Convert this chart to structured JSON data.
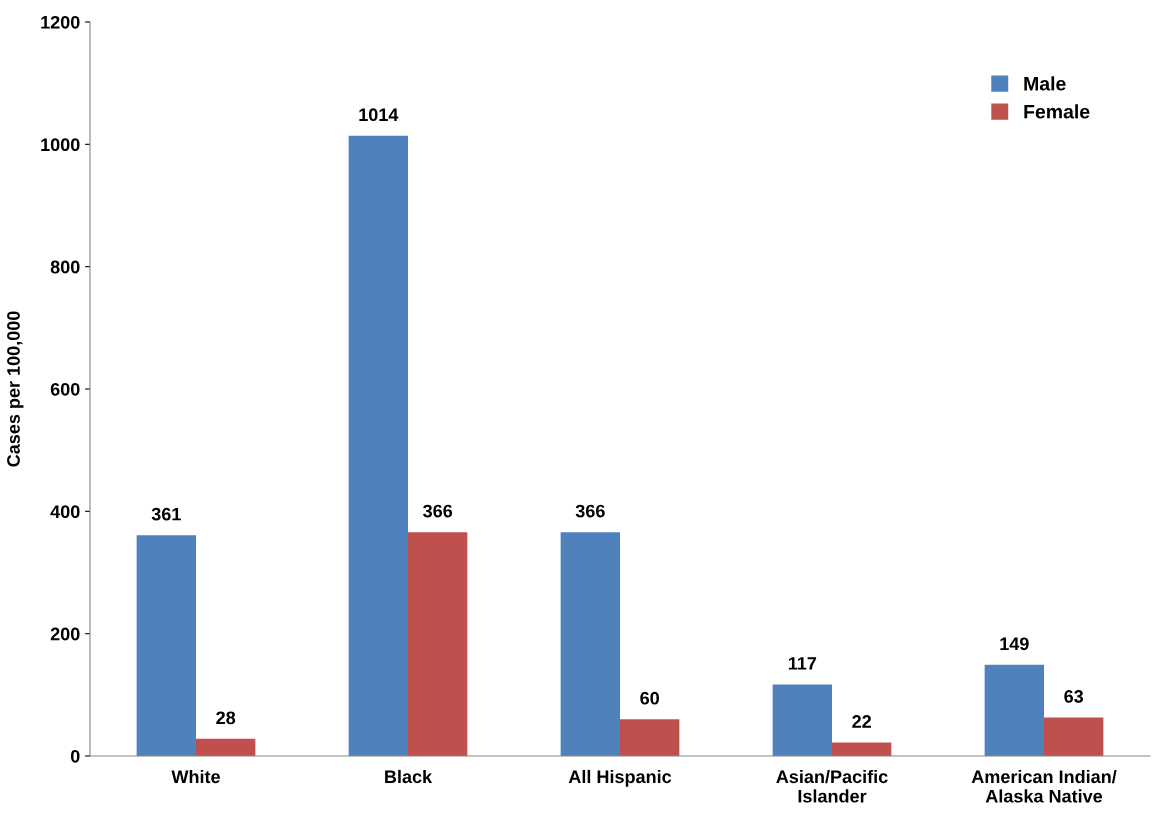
{
  "chart_data": {
    "type": "bar",
    "ylabel": "Cases per 100,000",
    "categories": [
      "White",
      "Black",
      "All Hispanic",
      "Asian/Pacific\nIslander",
      "American Indian/\nAlaska Native"
    ],
    "series": [
      {
        "name": "Male",
        "color": "#4f81bd",
        "values": [
          361,
          1014,
          366,
          117,
          149
        ]
      },
      {
        "name": "Female",
        "color": "#c0504d",
        "values": [
          28,
          366,
          60,
          22,
          63
        ]
      }
    ],
    "ylim": [
      0,
      1200
    ],
    "yticks": [
      0,
      200,
      400,
      600,
      800,
      1000,
      1200
    ],
    "data_labels": true,
    "legend": "top right",
    "grid": false
  }
}
